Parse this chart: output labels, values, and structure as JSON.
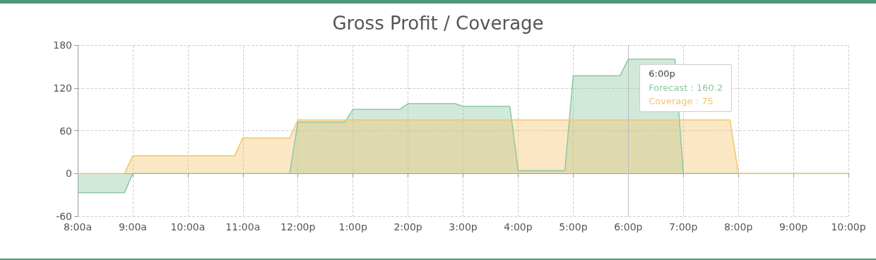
{
  "chart_data": {
    "type": "area",
    "title": "Gross Profit / Coverage",
    "xlim": [
      8,
      22
    ],
    "xticks": [
      {
        "value": 8,
        "label": "8:00a"
      },
      {
        "value": 9,
        "label": "9:00a"
      },
      {
        "value": 10,
        "label": "10:00a"
      },
      {
        "value": 11,
        "label": "11:00a"
      },
      {
        "value": 12,
        "label": "12:00p"
      },
      {
        "value": 13,
        "label": "1:00p"
      },
      {
        "value": 14,
        "label": "2:00p"
      },
      {
        "value": 15,
        "label": "3:00p"
      },
      {
        "value": 16,
        "label": "4:00p"
      },
      {
        "value": 17,
        "label": "5:00p"
      },
      {
        "value": 18,
        "label": "6:00p"
      },
      {
        "value": 19,
        "label": "7:00p"
      },
      {
        "value": 20,
        "label": "8:00p"
      },
      {
        "value": 21,
        "label": "9:00p"
      },
      {
        "value": 22,
        "label": "10:00p"
      }
    ],
    "ylim": [
      -60,
      180
    ],
    "yticks": [
      -60,
      0,
      60,
      120,
      180
    ],
    "grid": true,
    "marker": "none",
    "line_style": "solid",
    "series": [
      {
        "color": "#8cc7a3",
        "x": [
          8,
          8.85,
          9,
          11.85,
          12,
          12.85,
          13,
          13.85,
          14,
          14.85,
          15,
          15.85,
          16,
          16.85,
          17,
          17.85,
          18,
          18.85,
          19,
          22
        ],
        "values": [
          -27,
          -27,
          0,
          0,
          72,
          72,
          90,
          90,
          98,
          98,
          94,
          94,
          4,
          4,
          137,
          137,
          160.2,
          160.2,
          0,
          0
        ]
      },
      {
        "color": "#f5c46b",
        "x": [
          8,
          8.85,
          9,
          10.85,
          11,
          11.85,
          12,
          18,
          19.85,
          20,
          22
        ],
        "values": [
          0,
          0,
          25,
          25,
          50,
          50,
          75,
          75,
          75,
          0,
          0
        ]
      }
    ],
    "ref_lines": [
      {
        "axis": "x",
        "value": 18,
        "color": "#bbbbbb"
      }
    ],
    "annotations": [
      "6:00p",
      "Forecast : 160.2",
      "Coverage : 75"
    ]
  }
}
